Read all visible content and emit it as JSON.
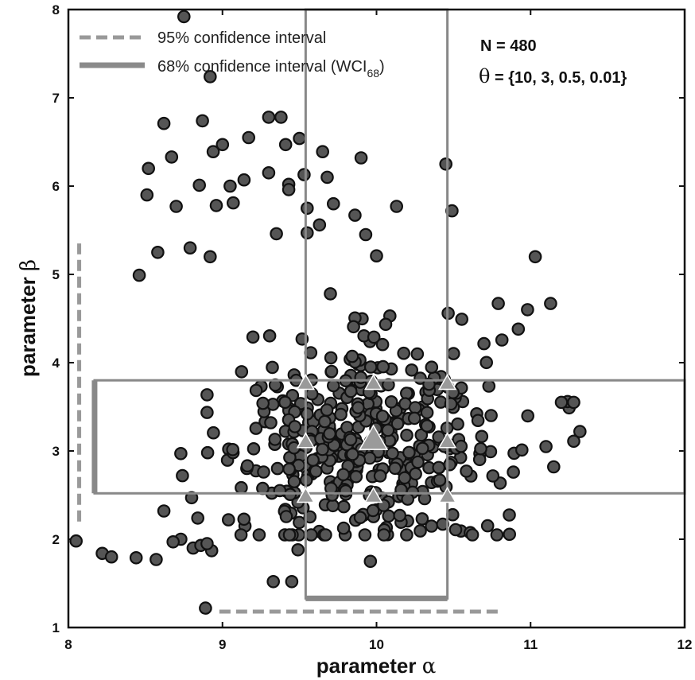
{
  "chart_data": {
    "type": "scatter",
    "xlabel": "parameter",
    "xlabel_symbol": "α",
    "ylabel": "parameter",
    "ylabel_symbol": "β",
    "xlim": [
      8,
      12
    ],
    "ylim": [
      1,
      8
    ],
    "xticks": [
      8,
      9,
      10,
      11,
      12
    ],
    "yticks": [
      1,
      2,
      3,
      4,
      5,
      6,
      7,
      8
    ],
    "grid": false,
    "legend_position": "top-left",
    "legend": [
      {
        "label": "95% confidence interval",
        "style": "dashed"
      },
      {
        "label": "68% confidence interval (WCI",
        "subscript": "68",
        "suffix": ")",
        "style": "solid"
      }
    ],
    "annotations": {
      "n_text": "N = 480",
      "theta_symbol": "θ",
      "theta_text": " = {10, 3, 0.5, 0.01}"
    },
    "colors": {
      "marker_fill": "#555555",
      "marker_edge": "#111111",
      "interval": "#888888",
      "triangle": "#9a9a9a"
    },
    "intervals": {
      "alpha_95": [
        8.98,
        10.82
      ],
      "alpha_95_y": 1.18,
      "alpha_68": [
        9.54,
        10.46
      ],
      "alpha_68_y": 1.33,
      "beta_95": [
        2.2,
        5.35
      ],
      "beta_95_x": 8.07,
      "beta_68": [
        2.52,
        3.8
      ],
      "beta_68_x": 8.17
    },
    "grid_points": {
      "alpha": [
        9.54,
        9.98,
        10.46
      ],
      "beta": [
        2.48,
        3.1,
        3.76
      ],
      "center": [
        9.98,
        3.12
      ]
    },
    "outlier_points": [
      [
        8.75,
        7.92
      ],
      [
        8.92,
        7.24
      ],
      [
        8.62,
        6.71
      ],
      [
        8.87,
        6.74
      ],
      [
        8.67,
        6.33
      ],
      [
        8.52,
        6.2
      ],
      [
        8.51,
        5.9
      ],
      [
        8.7,
        5.77
      ],
      [
        8.85,
        6.01
      ],
      [
        8.94,
        6.39
      ],
      [
        9.0,
        6.47
      ],
      [
        9.05,
        6.0
      ],
      [
        9.07,
        5.81
      ],
      [
        8.96,
        5.78
      ],
      [
        9.14,
        6.07
      ],
      [
        9.17,
        6.55
      ],
      [
        9.3,
        6.15
      ],
      [
        9.3,
        6.78
      ],
      [
        9.38,
        6.78
      ],
      [
        9.41,
        6.47
      ],
      [
        9.43,
        6.02
      ],
      [
        9.43,
        5.96
      ],
      [
        9.5,
        6.54
      ],
      [
        9.53,
        6.13
      ],
      [
        9.55,
        5.75
      ],
      [
        9.65,
        6.39
      ],
      [
        9.68,
        6.1
      ],
      [
        9.72,
        5.8
      ],
      [
        9.9,
        6.32
      ],
      [
        10.13,
        5.77
      ],
      [
        10.45,
        6.25
      ],
      [
        10.49,
        5.72
      ],
      [
        8.58,
        5.25
      ],
      [
        8.79,
        5.3
      ],
      [
        8.92,
        5.2
      ],
      [
        8.46,
        4.99
      ],
      [
        8.05,
        1.98
      ],
      [
        8.22,
        1.84
      ],
      [
        8.28,
        1.8
      ],
      [
        8.44,
        1.79
      ],
      [
        8.57,
        1.77
      ],
      [
        8.73,
        2.0
      ],
      [
        8.81,
        1.9
      ],
      [
        8.86,
        1.93
      ],
      [
        8.93,
        1.87
      ],
      [
        8.9,
        1.95
      ],
      [
        8.89,
        1.22
      ],
      [
        9.45,
        1.52
      ],
      [
        9.33,
        1.52
      ],
      [
        9.49,
        1.88
      ],
      [
        9.96,
        1.75
      ],
      [
        10.43,
        2.17
      ],
      [
        11.03,
        5.2
      ],
      [
        11.13,
        4.67
      ],
      [
        11.2,
        3.55
      ],
      [
        11.28,
        3.55
      ],
      [
        11.32,
        3.22
      ],
      [
        11.28,
        3.11
      ],
      [
        11.1,
        3.05
      ],
      [
        11.15,
        2.82
      ],
      [
        10.92,
        4.38
      ],
      [
        10.98,
        4.6
      ],
      [
        10.79,
        4.67
      ],
      [
        8.62,
        2.32
      ],
      [
        8.74,
        2.72
      ],
      [
        8.73,
        2.97
      ],
      [
        8.68,
        1.97
      ],
      [
        8.8,
        2.47
      ],
      [
        8.84,
        2.24
      ],
      [
        9.35,
        5.46
      ],
      [
        9.55,
        5.47
      ],
      [
        9.63,
        5.56
      ],
      [
        9.86,
        5.67
      ],
      [
        10.0,
        5.21
      ],
      [
        9.93,
        5.45
      ]
    ]
  }
}
